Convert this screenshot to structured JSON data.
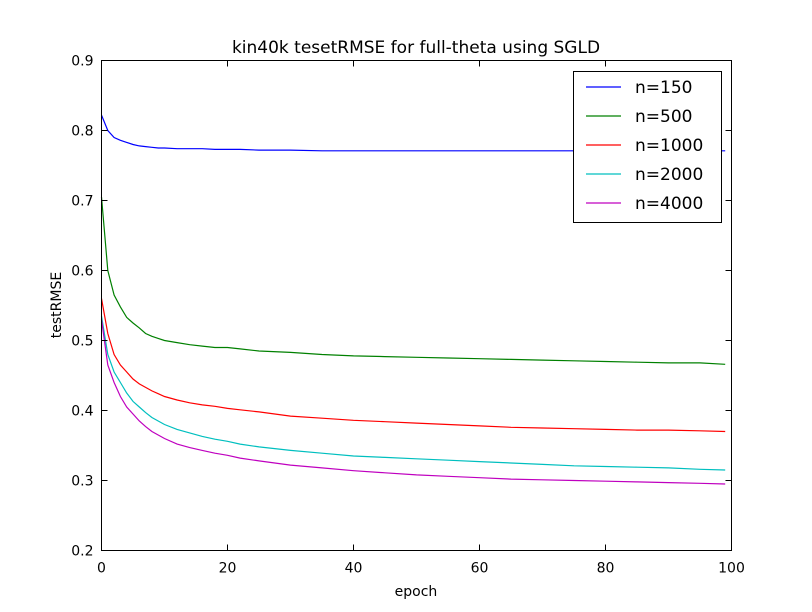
{
  "chart_data": {
    "type": "line",
    "title": "kin40k tesetRMSE for full-theta using SGLD",
    "xlabel": "epoch",
    "ylabel": "testRMSE",
    "xlim": [
      0,
      100
    ],
    "ylim": [
      0.2,
      0.9
    ],
    "xticks": [
      "0",
      "20",
      "40",
      "60",
      "80",
      "100"
    ],
    "yticks": [
      "0.2",
      "0.3",
      "0.4",
      "0.5",
      "0.6",
      "0.7",
      "0.8",
      "0.9"
    ],
    "grid": false,
    "legend_position": "top-right",
    "x": [
      0,
      1,
      2,
      3,
      4,
      5,
      6,
      7,
      8,
      9,
      10,
      12,
      14,
      16,
      18,
      20,
      22,
      25,
      30,
      35,
      40,
      45,
      50,
      55,
      60,
      65,
      70,
      75,
      80,
      85,
      90,
      95,
      99
    ],
    "series": [
      {
        "name": "n=150",
        "color": "#0000ff",
        "values": [
          0.822,
          0.8,
          0.79,
          0.786,
          0.783,
          0.78,
          0.778,
          0.777,
          0.776,
          0.775,
          0.775,
          0.774,
          0.774,
          0.774,
          0.773,
          0.773,
          0.773,
          0.772,
          0.772,
          0.771,
          0.771,
          0.771,
          0.771,
          0.771,
          0.771,
          0.771,
          0.771,
          0.771,
          0.771,
          0.771,
          0.771,
          0.771,
          0.771
        ]
      },
      {
        "name": "n=500",
        "color": "#008000",
        "values": [
          0.705,
          0.6,
          0.565,
          0.548,
          0.533,
          0.525,
          0.518,
          0.51,
          0.506,
          0.503,
          0.5,
          0.497,
          0.494,
          0.492,
          0.49,
          0.49,
          0.488,
          0.485,
          0.483,
          0.48,
          0.478,
          0.477,
          0.476,
          0.475,
          0.474,
          0.473,
          0.472,
          0.471,
          0.47,
          0.469,
          0.468,
          0.468,
          0.466
        ]
      },
      {
        "name": "n=1000",
        "color": "#ff0000",
        "values": [
          0.56,
          0.51,
          0.48,
          0.465,
          0.455,
          0.445,
          0.438,
          0.433,
          0.428,
          0.424,
          0.42,
          0.415,
          0.411,
          0.408,
          0.406,
          0.403,
          0.401,
          0.398,
          0.392,
          0.389,
          0.386,
          0.384,
          0.382,
          0.38,
          0.378,
          0.376,
          0.375,
          0.374,
          0.373,
          0.372,
          0.372,
          0.371,
          0.37
        ]
      },
      {
        "name": "n=2000",
        "color": "#00bfbf",
        "values": [
          0.535,
          0.48,
          0.455,
          0.44,
          0.425,
          0.413,
          0.405,
          0.397,
          0.39,
          0.385,
          0.38,
          0.373,
          0.368,
          0.363,
          0.359,
          0.356,
          0.352,
          0.348,
          0.343,
          0.339,
          0.335,
          0.333,
          0.331,
          0.329,
          0.327,
          0.325,
          0.323,
          0.321,
          0.32,
          0.319,
          0.318,
          0.316,
          0.315
        ]
      },
      {
        "name": "n=4000",
        "color": "#bf00bf",
        "values": [
          0.53,
          0.465,
          0.44,
          0.42,
          0.405,
          0.395,
          0.385,
          0.377,
          0.37,
          0.365,
          0.36,
          0.352,
          0.347,
          0.343,
          0.339,
          0.336,
          0.332,
          0.328,
          0.322,
          0.318,
          0.314,
          0.311,
          0.308,
          0.306,
          0.304,
          0.302,
          0.301,
          0.3,
          0.299,
          0.298,
          0.297,
          0.296,
          0.295
        ]
      }
    ]
  }
}
